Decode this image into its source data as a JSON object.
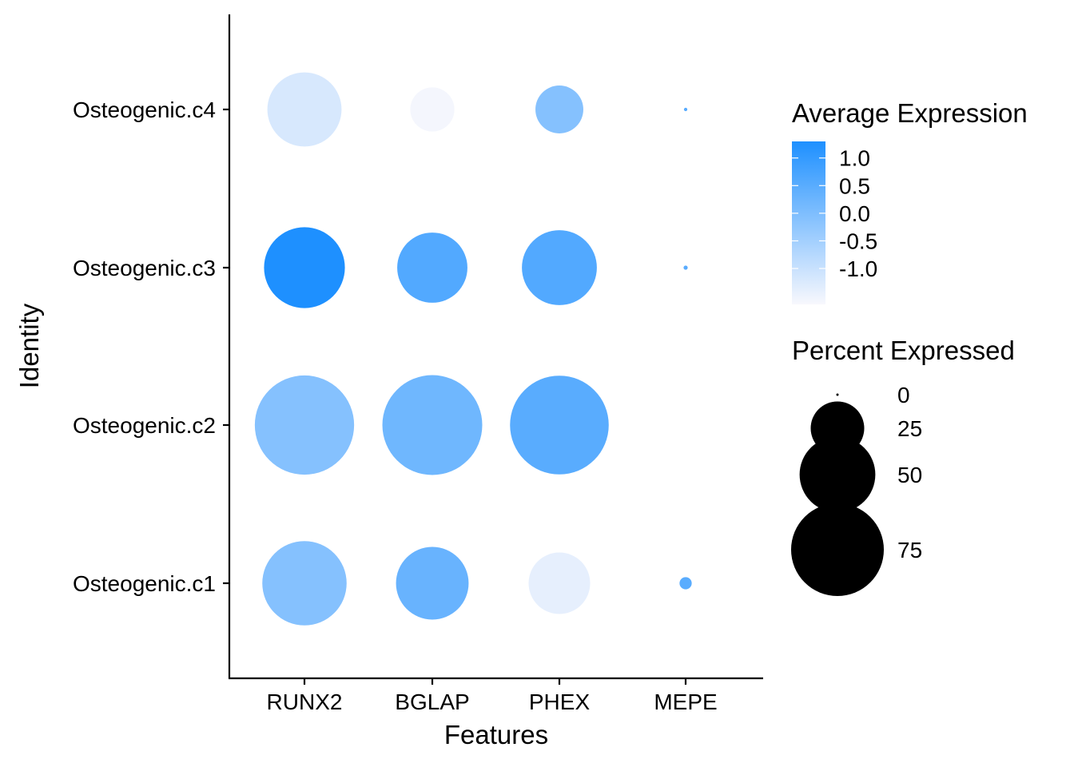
{
  "chart_data": {
    "type": "scatter",
    "subtype": "dot-plot",
    "xlabel": "Features",
    "ylabel": "Identity",
    "features": [
      "RUNX2",
      "BGLAP",
      "PHEX",
      "MEPE"
    ],
    "identities": [
      "Osteogenic.c1",
      "Osteogenic.c2",
      "Osteogenic.c3",
      "Osteogenic.c4"
    ],
    "points": [
      {
        "identity": "Osteogenic.c1",
        "feature": "RUNX2",
        "pct_exp": 62,
        "avg_exp": -0.1
      },
      {
        "identity": "Osteogenic.c1",
        "feature": "BGLAP",
        "pct_exp": 46,
        "avg_exp": 0.3
      },
      {
        "identity": "Osteogenic.c1",
        "feature": "PHEX",
        "pct_exp": 33,
        "avg_exp": -1.4
      },
      {
        "identity": "Osteogenic.c1",
        "feature": "MEPE",
        "pct_exp": 1.3,
        "avg_exp": 0.5
      },
      {
        "identity": "Osteogenic.c2",
        "feature": "RUNX2",
        "pct_exp": 86,
        "avg_exp": -0.1
      },
      {
        "identity": "Osteogenic.c2",
        "feature": "BGLAP",
        "pct_exp": 87,
        "avg_exp": 0.2
      },
      {
        "identity": "Osteogenic.c2",
        "feature": "PHEX",
        "pct_exp": 85,
        "avg_exp": 0.5
      },
      {
        "identity": "Osteogenic.c2",
        "feature": "MEPE",
        "pct_exp": 0,
        "avg_exp": null
      },
      {
        "identity": "Osteogenic.c3",
        "feature": "RUNX2",
        "pct_exp": 57,
        "avg_exp": 1.3
      },
      {
        "identity": "Osteogenic.c3",
        "feature": "BGLAP",
        "pct_exp": 43,
        "avg_exp": 0.6
      },
      {
        "identity": "Osteogenic.c3",
        "feature": "PHEX",
        "pct_exp": 49,
        "avg_exp": 0.6
      },
      {
        "identity": "Osteogenic.c3",
        "feature": "MEPE",
        "pct_exp": 0.15,
        "avg_exp": 0.5
      },
      {
        "identity": "Osteogenic.c4",
        "feature": "RUNX2",
        "pct_exp": 48,
        "avg_exp": -1.2
      },
      {
        "identity": "Osteogenic.c4",
        "feature": "BGLAP",
        "pct_exp": 17,
        "avg_exp": -1.6
      },
      {
        "identity": "Osteogenic.c4",
        "feature": "PHEX",
        "pct_exp": 20,
        "avg_exp": -0.1
      },
      {
        "identity": "Osteogenic.c4",
        "feature": "MEPE",
        "pct_exp": 0.1,
        "avg_exp": 0.5
      }
    ],
    "color_legend": {
      "title": "Average Expression",
      "ticks": [
        1.0,
        0.5,
        0.0,
        -0.5,
        -1.0
      ],
      "tick_labels": [
        "1.0",
        "0.5",
        "0.0",
        "-0.5",
        "-1.0"
      ],
      "range": [
        -1.65,
        1.3
      ],
      "low_color": "#f8f8fd",
      "high_color": "#1e90ff"
    },
    "size_legend": {
      "title": "Percent Expressed",
      "values": [
        0,
        25,
        50,
        75
      ],
      "labels": [
        "0",
        "25",
        "50",
        "75"
      ]
    },
    "legend_position": "right",
    "grid": false
  }
}
